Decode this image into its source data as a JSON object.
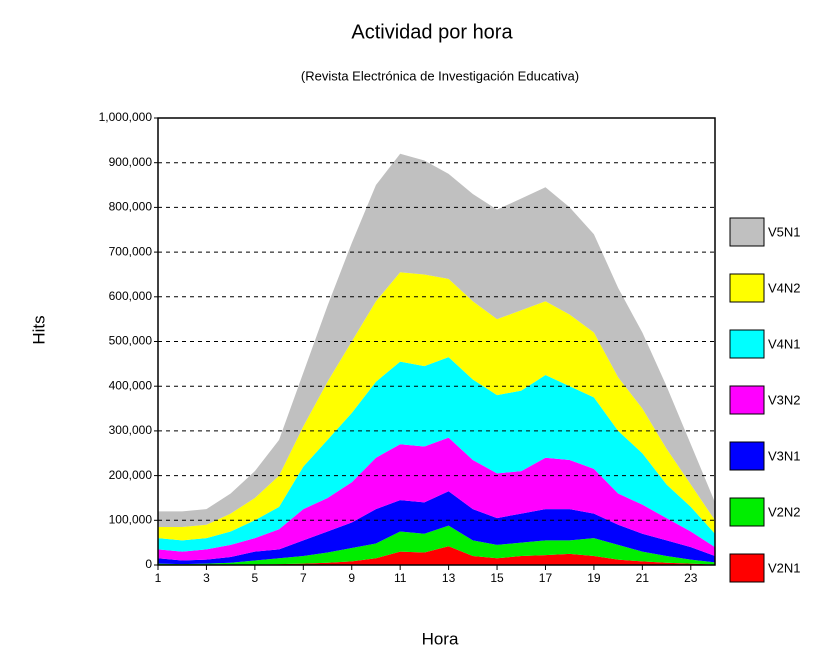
{
  "chart_data": {
    "type": "stacked-area",
    "title": "Actividad por hora",
    "subtitle": "(Revista Electrónica de Investigación Educativa)",
    "x_label": "Hora",
    "y_label": "Hits",
    "x": [
      1,
      2,
      3,
      4,
      5,
      6,
      7,
      8,
      9,
      10,
      11,
      12,
      13,
      14,
      15,
      16,
      17,
      18,
      19,
      20,
      21,
      22,
      23,
      24
    ],
    "xlim": [
      1,
      24
    ],
    "xticks": [
      1,
      3,
      5,
      7,
      9,
      11,
      13,
      15,
      17,
      19,
      21,
      23
    ],
    "ylim": [
      0,
      1000000
    ],
    "yticks": [
      0,
      {
        "value": 100000,
        "label": "100,000"
      },
      {
        "value": 200000,
        "label": "200,000"
      },
      {
        "value": 300000,
        "label": "300,000"
      },
      {
        "value": 400000,
        "label": "400,000"
      },
      {
        "value": 500000,
        "label": "500,000"
      },
      {
        "value": 600000,
        "label": "600,000"
      },
      {
        "value": 700000,
        "label": "700,000"
      },
      {
        "value": 800000,
        "label": "800,000"
      },
      {
        "value": 900000,
        "label": "900,000"
      },
      {
        "value": 1000000,
        "label": "1,000,000"
      }
    ],
    "grid": true,
    "legend": "right",
    "series": [
      {
        "name": "V5N1",
        "color": "#c0c0c0",
        "values": [
          35000,
          35000,
          35000,
          45000,
          60000,
          80000,
          120000,
          170000,
          220000,
          260000,
          265000,
          255000,
          235000,
          240000,
          245000,
          250000,
          255000,
          240000,
          220000,
          200000,
          170000,
          140000,
          90000,
          40000
        ]
      },
      {
        "name": "V4N2",
        "color": "#ffff00",
        "values": [
          25000,
          30000,
          30000,
          40000,
          50000,
          70000,
          90000,
          130000,
          160000,
          180000,
          200000,
          205000,
          175000,
          175000,
          170000,
          180000,
          165000,
          160000,
          145000,
          120000,
          100000,
          80000,
          50000,
          30000
        ]
      },
      {
        "name": "V4N1",
        "color": "#00ffff",
        "values": [
          25000,
          25000,
          25000,
          30000,
          40000,
          50000,
          95000,
          130000,
          155000,
          170000,
          185000,
          180000,
          180000,
          180000,
          175000,
          180000,
          185000,
          165000,
          160000,
          140000,
          115000,
          75000,
          55000,
          30000
        ]
      },
      {
        "name": "V3N2",
        "color": "#ff00ff",
        "values": [
          20000,
          20000,
          23000,
          27000,
          30000,
          45000,
          70000,
          75000,
          90000,
          115000,
          125000,
          125000,
          120000,
          110000,
          100000,
          95000,
          115000,
          110000,
          100000,
          70000,
          65000,
          50000,
          35000,
          20000
        ]
      },
      {
        "name": "V3N1",
        "color": "#0000ff",
        "values": [
          12000,
          8000,
          9000,
          13000,
          20000,
          20000,
          35000,
          47000,
          57000,
          77000,
          70000,
          70000,
          77000,
          70000,
          60000,
          65000,
          70000,
          70000,
          55000,
          45000,
          40000,
          35000,
          28000,
          14000
        ]
      },
      {
        "name": "V2N2",
        "color": "#00ee00",
        "values": [
          3000,
          2000,
          3000,
          5000,
          9000,
          13000,
          17000,
          23000,
          30000,
          33000,
          45000,
          42000,
          46000,
          35000,
          30000,
          30000,
          33000,
          30000,
          40000,
          33000,
          22000,
          15000,
          9000,
          5000
        ]
      },
      {
        "name": "V2N1",
        "color": "#ff0000",
        "values": [
          0,
          0,
          0,
          0,
          1000,
          2000,
          3000,
          5000,
          8000,
          15000,
          30000,
          28000,
          42000,
          20000,
          15000,
          20000,
          22000,
          25000,
          20000,
          12000,
          8000,
          5000,
          3000,
          1000
        ]
      }
    ]
  }
}
